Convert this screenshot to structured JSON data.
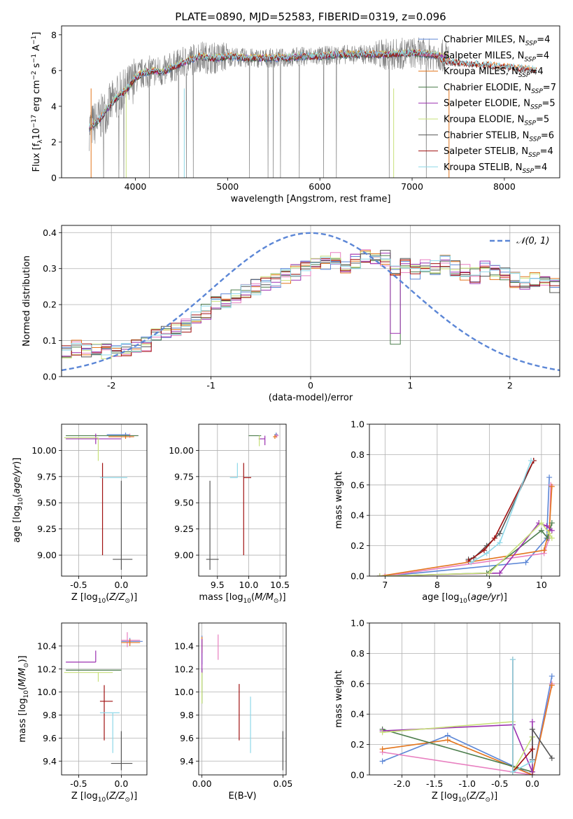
{
  "figure": {
    "title": "PLATE=0890, MJD=52583, FIBERID=0319, z=0.096"
  },
  "colors": {
    "Chabrier MILES": "#5b86d6",
    "Salpeter MILES": "#e87fc0",
    "Kroupa MILES": "#e3751c",
    "Chabrier ELODIE": "#4c7d4c",
    "Salpeter ELODIE": "#9b30b0",
    "Kroupa ELODIE": "#c7e07a",
    "Chabrier STELIB": "#555555",
    "Salpeter STELIB": "#a01010",
    "Kroupa STELIB": "#8ed8e8",
    "data": "#808080",
    "normal": "#5b86d6",
    "grid": "#b0b0b0"
  },
  "chart_data": [
    {
      "id": "spectrum",
      "type": "line",
      "xlabel": "wavelength [Angstrom, rest frame]",
      "ylabel": "Flux [f_λ 10^-17 erg cm^-2 s^-1 A^-1]",
      "xlim": [
        3200,
        8600
      ],
      "ylim": [
        0,
        8.5
      ],
      "xticks": [
        4000,
        5000,
        6000,
        7000,
        8000
      ],
      "yticks": [
        0,
        2,
        4,
        6,
        8
      ],
      "grid": false,
      "legend_position": "upper right",
      "legend": [
        {
          "name": "Chabrier MILES",
          "nssp": 4
        },
        {
          "name": "Salpeter MILES",
          "nssp": 4
        },
        {
          "name": "Kroupa MILES",
          "nssp": 4
        },
        {
          "name": "Chabrier ELODIE",
          "nssp": 7
        },
        {
          "name": "Salpeter ELODIE",
          "nssp": 5
        },
        {
          "name": "Kroupa ELODIE",
          "nssp": 5
        },
        {
          "name": "Chabrier STELIB",
          "nssp": 6
        },
        {
          "name": "Salpeter STELIB",
          "nssp": 4
        },
        {
          "name": "Kroupa STELIB",
          "nssp": 4
        }
      ],
      "model_continuum": {
        "x": [
          3500,
          3600,
          3700,
          3800,
          3900,
          4000,
          4100,
          4200,
          4300,
          4400,
          4500,
          4600,
          4700,
          4800,
          4900,
          5000,
          5200,
          5400,
          5600,
          5800,
          6000,
          6200,
          6400,
          6600,
          6800,
          7000,
          7200,
          7400,
          7600,
          7800,
          8000,
          8200,
          8400
        ],
        "y": [
          2.8,
          3.2,
          3.9,
          4.5,
          4.9,
          5.6,
          5.9,
          6.0,
          5.9,
          6.2,
          6.4,
          6.6,
          6.8,
          6.7,
          6.7,
          6.8,
          6.7,
          6.7,
          6.7,
          6.8,
          6.8,
          6.9,
          6.9,
          6.9,
          6.9,
          7.0,
          6.9,
          6.8,
          6.7,
          6.6,
          6.5,
          6.4,
          6.3
        ]
      },
      "data_range": [
        3500,
        7400
      ]
    },
    {
      "id": "residuals",
      "type": "line",
      "xlabel": "(data-model)/error",
      "ylabel": "Normed distribution",
      "xlim": [
        -2.5,
        2.5
      ],
      "ylim": [
        0,
        0.42
      ],
      "xticks": [
        -2,
        -1,
        0,
        1,
        2
      ],
      "yticks": [
        0.0,
        0.1,
        0.2,
        0.3,
        0.4
      ],
      "grid": true,
      "legend_position": "upper right",
      "normal_curve": {
        "label": "𝒩(0, 1)",
        "mean": 0,
        "sigma": 1
      },
      "hist_base": {
        "bin_width": 0.1,
        "x_start": -2.5,
        "values": [
          0.07,
          0.08,
          0.075,
          0.08,
          0.07,
          0.075,
          0.08,
          0.085,
          0.09,
          0.11,
          0.12,
          0.13,
          0.14,
          0.16,
          0.18,
          0.2,
          0.21,
          0.22,
          0.24,
          0.25,
          0.26,
          0.27,
          0.28,
          0.29,
          0.3,
          0.31,
          0.32,
          0.33,
          0.31,
          0.32,
          0.34,
          0.32,
          0.33,
          0.3,
          0.31,
          0.29,
          0.31,
          0.3,
          0.32,
          0.3,
          0.29,
          0.28,
          0.3,
          0.29,
          0.28,
          0.27,
          0.26,
          0.27,
          0.26,
          0.25,
          0.24,
          0.25,
          0.22,
          0.21,
          0.2,
          0.19,
          0.18,
          0.17,
          0.16,
          0.15,
          0.14,
          0.13,
          0.12,
          0.11,
          0.11,
          0.1,
          0.09,
          0.1,
          0.09,
          0.08,
          0.08
        ]
      }
    },
    {
      "id": "age_vs_Z",
      "type": "scatter",
      "xlabel": "Z [log10(Z/Z⊙)]",
      "ylabel": "age  [log10(age/yr)]",
      "xlim": [
        -0.7,
        0.3
      ],
      "ylim": [
        8.8,
        10.25
      ],
      "xticks": [
        -0.5,
        0.0
      ],
      "yticks": [
        9.0,
        9.25,
        9.5,
        9.75,
        10.0
      ],
      "grid": true,
      "points": [
        {
          "series": "Chabrier MILES",
          "x": 0.05,
          "y": 10.15,
          "xerr": [
            0.22,
            0.05
          ],
          "yerr": [
            0.02,
            0.02
          ]
        },
        {
          "series": "Salpeter MILES",
          "x": 0.1,
          "y": 10.14,
          "xerr": [
            0.1,
            0.1
          ],
          "yerr": [
            0.02,
            0.02
          ]
        },
        {
          "series": "Kroupa MILES",
          "x": 0.05,
          "y": 10.13,
          "xerr": [
            0.2,
            0.1
          ],
          "yerr": [
            0.02,
            0.02
          ]
        },
        {
          "series": "Chabrier ELODIE",
          "x": -0.25,
          "y": 10.14,
          "xerr": [
            0.4,
            0.45
          ],
          "yerr": [
            0.0,
            0.0
          ]
        },
        {
          "series": "Salpeter ELODIE",
          "x": -0.3,
          "y": 10.11,
          "xerr": [
            0.35,
            0.3
          ],
          "yerr": [
            0.05,
            0.05
          ]
        },
        {
          "series": "Kroupa ELODIE",
          "x": -0.27,
          "y": 10.12,
          "xerr": [
            0.4,
            0.0
          ],
          "yerr": [
            0.22,
            0.0
          ]
        },
        {
          "series": "Chabrier STELIB",
          "x": 0.0,
          "y": 8.96,
          "xerr": [
            0.1,
            0.13
          ],
          "yerr": [
            0.1,
            0.75
          ]
        },
        {
          "series": "Salpeter STELIB",
          "x": -0.22,
          "y": 9.74,
          "xerr": [
            0.0,
            0.0
          ],
          "yerr": [
            0.74,
            0.14
          ]
        },
        {
          "series": "Kroupa STELIB",
          "x": -0.05,
          "y": 9.74,
          "xerr": [
            0.2,
            0.12
          ],
          "yerr": [
            0.0,
            0.0
          ]
        }
      ]
    },
    {
      "id": "age_vs_mass",
      "type": "scatter",
      "xlabel": "mass [log10(M/M⊙)]",
      "ylabel": "",
      "xlim": [
        9.2,
        10.6
      ],
      "ylim": [
        8.8,
        10.25
      ],
      "xticks": [
        9.5,
        10.0,
        10.5
      ],
      "yticks": [
        9.0,
        9.25,
        9.5,
        9.75,
        10.0
      ],
      "grid": true,
      "points": [
        {
          "series": "Chabrier MILES",
          "x": 10.44,
          "y": 10.15,
          "xerr": [
            0.03,
            0.03
          ],
          "yerr": [
            0.02,
            0.02
          ]
        },
        {
          "series": "Salpeter MILES",
          "x": 10.45,
          "y": 10.14,
          "xerr": [
            0.03,
            0.03
          ],
          "yerr": [
            0.02,
            0.02
          ]
        },
        {
          "series": "Kroupa MILES",
          "x": 10.42,
          "y": 10.13,
          "xerr": [
            0.03,
            0.03
          ],
          "yerr": [
            0.02,
            0.02
          ]
        },
        {
          "series": "Chabrier ELODIE",
          "x": 10.2,
          "y": 10.14,
          "xerr": [
            0.2,
            0.0
          ],
          "yerr": [
            0.0,
            0.0
          ]
        },
        {
          "series": "Salpeter ELODIE",
          "x": 10.26,
          "y": 10.11,
          "xerr": [
            0.1,
            0.0
          ],
          "yerr": [
            0.06,
            0.03
          ]
        },
        {
          "series": "Kroupa ELODIE",
          "x": 10.17,
          "y": 10.12,
          "xerr": [
            0.0,
            0.0
          ],
          "yerr": [
            0.08,
            0.02
          ]
        },
        {
          "series": "Chabrier STELIB",
          "x": 9.38,
          "y": 8.96,
          "xerr": [
            0.06,
            0.14
          ],
          "yerr": [
            0.1,
            0.75
          ]
        },
        {
          "series": "Salpeter STELIB",
          "x": 9.92,
          "y": 9.74,
          "xerr": [
            0.0,
            0.12
          ],
          "yerr": [
            0.74,
            0.14
          ]
        },
        {
          "series": "Kroupa STELIB",
          "x": 9.82,
          "y": 9.74,
          "xerr": [
            0.12,
            0.0
          ],
          "yerr": [
            0.0,
            0.14
          ]
        }
      ]
    },
    {
      "id": "massweight_vs_age",
      "type": "line",
      "xlabel": "age  [log10(age/yr)]",
      "ylabel": "mass weight",
      "xlim": [
        6.7,
        10.35
      ],
      "ylim": [
        0,
        1
      ],
      "xticks": [
        7,
        8,
        9,
        10
      ],
      "yticks": [
        0.0,
        0.2,
        0.4,
        0.6,
        0.8,
        1.0
      ],
      "grid": true,
      "series": [
        {
          "name": "Chabrier MILES",
          "x": [
            7.0,
            9.7,
            10.1,
            10.15
          ],
          "y": [
            0.0,
            0.09,
            0.25,
            0.65
          ]
        },
        {
          "name": "Salpeter MILES",
          "x": [
            7.0,
            10.05,
            10.15,
            10.18
          ],
          "y": [
            0.0,
            0.15,
            0.25,
            0.6
          ]
        },
        {
          "name": "Kroupa MILES",
          "x": [
            6.9,
            10.05,
            10.15,
            10.2
          ],
          "y": [
            0.0,
            0.17,
            0.3,
            0.59
          ]
        },
        {
          "name": "Chabrier ELODIE",
          "x": [
            6.9,
            8.95,
            10.0,
            10.12,
            10.2
          ],
          "y": [
            0.0,
            0.02,
            0.3,
            0.25,
            0.35
          ]
        },
        {
          "name": "Salpeter ELODIE",
          "x": [
            6.9,
            9.2,
            9.95,
            10.1,
            10.2
          ],
          "y": [
            0.0,
            0.02,
            0.35,
            0.33,
            0.3
          ]
        },
        {
          "name": "Kroupa ELODIE",
          "x": [
            6.9,
            9.0,
            10.0,
            10.15,
            10.2
          ],
          "y": [
            0.0,
            0.02,
            0.35,
            0.28,
            0.25
          ]
        },
        {
          "name": "Chabrier STELIB",
          "x": [
            8.6,
            8.7,
            8.95,
            9.2,
            9.85
          ],
          "y": [
            0.11,
            0.12,
            0.2,
            0.28,
            0.76
          ]
        },
        {
          "name": "Salpeter STELIB",
          "x": [
            8.6,
            8.9,
            9.1,
            9.85
          ],
          "y": [
            0.1,
            0.17,
            0.25,
            0.76
          ]
        },
        {
          "name": "Kroupa STELIB",
          "x": [
            8.65,
            8.95,
            9.2,
            9.8
          ],
          "y": [
            0.09,
            0.15,
            0.22,
            0.76
          ]
        }
      ]
    },
    {
      "id": "mass_vs_Z",
      "type": "scatter",
      "xlabel": "Z [log10(Z/Z⊙)]",
      "ylabel": "mass [log10(M/M⊙)]",
      "xlim": [
        -0.7,
        0.3
      ],
      "ylim": [
        9.28,
        10.6
      ],
      "xticks": [
        -0.5,
        0.0
      ],
      "yticks": [
        9.4,
        9.6,
        9.8,
        10.0,
        10.2,
        10.4
      ],
      "grid": true,
      "points": [
        {
          "series": "Chabrier MILES",
          "x": 0.1,
          "y": 10.44,
          "xerr": [
            0.1,
            0.15
          ],
          "yerr": [
            0.03,
            0.03
          ]
        },
        {
          "series": "Salpeter MILES",
          "x": 0.07,
          "y": 10.45,
          "xerr": [
            0.07,
            0.15
          ],
          "yerr": [
            0.06,
            0.07
          ]
        },
        {
          "series": "Kroupa MILES",
          "x": 0.1,
          "y": 10.43,
          "xerr": [
            0.1,
            0.12
          ],
          "yerr": [
            0.03,
            0.03
          ]
        },
        {
          "series": "Chabrier ELODIE",
          "x": -0.2,
          "y": 10.19,
          "xerr": [
            0.45,
            0.2
          ],
          "yerr": [
            0.0,
            0.0
          ]
        },
        {
          "series": "Salpeter ELODIE",
          "x": -0.3,
          "y": 10.26,
          "xerr": [
            0.35,
            0.0
          ],
          "yerr": [
            0.0,
            0.1
          ]
        },
        {
          "series": "Kroupa ELODIE",
          "x": -0.27,
          "y": 10.17,
          "xerr": [
            0.4,
            0.17
          ],
          "yerr": [
            0.08,
            0.0
          ]
        },
        {
          "series": "Chabrier STELIB",
          "x": 0.0,
          "y": 9.38,
          "xerr": [
            0.12,
            0.13
          ],
          "yerr": [
            0.06,
            0.28
          ]
        },
        {
          "series": "Salpeter STELIB",
          "x": -0.2,
          "y": 9.92,
          "xerr": [
            0.05,
            0.1
          ],
          "yerr": [
            0.34,
            0.14
          ]
        },
        {
          "series": "Kroupa STELIB",
          "x": -0.1,
          "y": 9.82,
          "xerr": [
            0.15,
            0.08
          ],
          "yerr": [
            0.35,
            0.0
          ]
        }
      ]
    },
    {
      "id": "mass_vs_ebv",
      "type": "scatter",
      "xlabel": "E(B-V)",
      "ylabel": "",
      "xlim": [
        -0.002,
        0.052
      ],
      "ylim": [
        9.28,
        10.6
      ],
      "xticks": [
        0.0,
        0.05
      ],
      "yticks": [
        9.4,
        9.6,
        9.8,
        10.0,
        10.2,
        10.4
      ],
      "grid": true,
      "points": [
        {
          "series": "Chabrier MILES",
          "x": 0.0,
          "y": 10.44,
          "yerr": [
            0.2,
            0.05
          ]
        },
        {
          "series": "Salpeter MILES",
          "x": 0.01,
          "y": 10.4,
          "yerr": [
            0.12,
            0.1
          ]
        },
        {
          "series": "Kroupa MILES",
          "x": 0.0,
          "y": 10.42,
          "yerr": [
            0.08,
            0.06
          ]
        },
        {
          "series": "Chabrier ELODIE",
          "x": 0.0,
          "y": 10.2,
          "yerr": [
            0.3,
            0.0
          ]
        },
        {
          "series": "Salpeter ELODIE",
          "x": 0.0,
          "y": 10.26,
          "yerr": [
            0.1,
            0.2
          ]
        },
        {
          "series": "Kroupa ELODIE",
          "x": 0.0,
          "y": 10.17,
          "yerr": [
            0.27,
            0.0
          ]
        },
        {
          "series": "Chabrier STELIB",
          "x": 0.05,
          "y": 9.38,
          "yerr": [
            0.06,
            0.28
          ]
        },
        {
          "series": "Salpeter STELIB",
          "x": 0.023,
          "y": 9.92,
          "yerr": [
            0.34,
            0.15
          ]
        },
        {
          "series": "Kroupa STELIB",
          "x": 0.03,
          "y": 9.82,
          "yerr": [
            0.35,
            0.14
          ]
        }
      ]
    },
    {
      "id": "massweight_vs_Z",
      "type": "line",
      "xlabel": "Z [log10(Z/Z⊙)]",
      "ylabel": "mass weight",
      "xlim": [
        -2.5,
        0.42
      ],
      "ylim": [
        0,
        1
      ],
      "xticks": [
        -2.0,
        -1.5,
        -1.0,
        -0.5,
        0.0
      ],
      "yticks": [
        0.0,
        0.2,
        0.4,
        0.6,
        0.8,
        1.0
      ],
      "grid": true,
      "series": [
        {
          "name": "Chabrier MILES",
          "x": [
            -2.3,
            -1.3,
            0.0,
            0.3
          ],
          "y": [
            0.09,
            0.26,
            0.0,
            0.65
          ]
        },
        {
          "name": "Salpeter MILES",
          "x": [
            -2.3,
            0.0,
            0.3
          ],
          "y": [
            0.15,
            0.0,
            0.6
          ]
        },
        {
          "name": "Kroupa MILES",
          "x": [
            -2.3,
            -1.3,
            0.0,
            0.3
          ],
          "y": [
            0.17,
            0.23,
            0.0,
            0.59
          ]
        },
        {
          "name": "Chabrier ELODIE",
          "x": [
            -2.3,
            0.0,
            0.0
          ],
          "y": [
            0.3,
            0.02,
            0.25
          ]
        },
        {
          "name": "Salpeter ELODIE",
          "x": [
            -2.3,
            -0.3,
            0.0,
            0.0
          ],
          "y": [
            0.29,
            0.33,
            0.02,
            0.35
          ]
        },
        {
          "name": "Kroupa ELODIE",
          "x": [
            -2.3,
            -0.3,
            -0.3,
            0.0
          ],
          "y": [
            0.28,
            0.35,
            0.02,
            0.25
          ]
        },
        {
          "name": "Chabrier STELIB",
          "x": [
            0.0,
            0.0,
            0.3
          ],
          "y": [
            0.1,
            0.3,
            0.11
          ]
        },
        {
          "name": "Salpeter STELIB",
          "x": [
            -0.3,
            -0.3,
            0.0
          ],
          "y": [
            0.76,
            0.02,
            0.17
          ]
        },
        {
          "name": "Kroupa STELIB",
          "x": [
            -0.3,
            -0.3,
            0.0
          ],
          "y": [
            0.76,
            0.02,
            0.09
          ]
        }
      ]
    }
  ]
}
